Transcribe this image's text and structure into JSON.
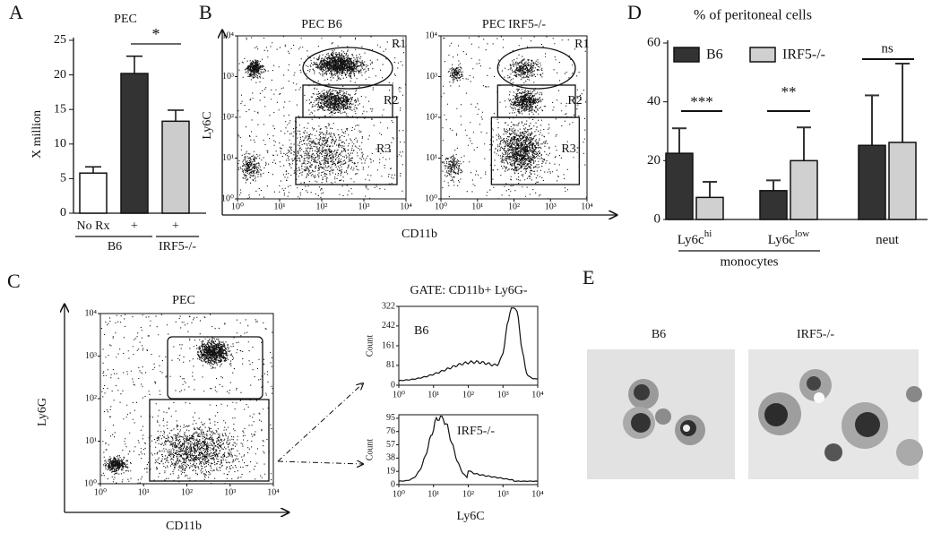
{
  "chart_data": [
    {
      "type": "bar",
      "label": "A",
      "title": "PEC",
      "ylabel": "X million",
      "categories": [
        "No Rx",
        "+",
        "+"
      ],
      "group_labels": [
        "B6",
        "IRF5-/-"
      ],
      "values": [
        5.8,
        20.2,
        13.3
      ],
      "errors": [
        0.9,
        2.5,
        1.6
      ],
      "colors": [
        "#ffffff",
        "#333333",
        "#cccccc"
      ],
      "ylim": [
        0,
        25
      ],
      "yticks": [
        0,
        5,
        10,
        15,
        20,
        25
      ],
      "annotations": [
        "*"
      ]
    },
    {
      "type": "flow",
      "label": "B",
      "titles": [
        "PEC B6",
        "PEC IRF5-/-"
      ],
      "xlabel": "CD11b",
      "ylabel": "Ly6C",
      "log": true,
      "xlim": [
        1,
        10000
      ],
      "ylim": [
        1,
        10000
      ],
      "xticks": [
        {
          "value": 1,
          "label": "10⁰"
        },
        {
          "value": 10,
          "label": "10¹"
        },
        {
          "value": 100,
          "label": "10²"
        },
        {
          "value": 1000,
          "label": "10³"
        },
        {
          "value": 10000,
          "label": "10⁴"
        }
      ],
      "yticks": [
        {
          "value": 1,
          "label": "10⁰"
        },
        {
          "value": 10,
          "label": "10¹"
        },
        {
          "value": 100,
          "label": "10²"
        },
        {
          "value": 1000,
          "label": "10³"
        },
        {
          "value": 10000,
          "label": "10⁴"
        }
      ],
      "gates": [
        "R1",
        "R2",
        "R3"
      ]
    },
    {
      "type": "flow_histogram",
      "label": "C",
      "title": "PEC",
      "xlabel": "CD11b",
      "ylabel": "Ly6G",
      "log": true,
      "xlim": [
        1,
        10000
      ],
      "ylim": [
        1,
        10000
      ],
      "xticks": [
        {
          "value": 1,
          "label": "10⁰"
        },
        {
          "value": 10,
          "label": "10¹"
        },
        {
          "value": 100,
          "label": "10²"
        },
        {
          "value": 1000,
          "label": "10³"
        },
        {
          "value": 10000,
          "label": "10⁴"
        }
      ],
      "yticks": [
        {
          "value": 1,
          "label": "10⁰"
        },
        {
          "value": 10,
          "label": "10¹"
        },
        {
          "value": 100,
          "label": "10²"
        },
        {
          "value": 1000,
          "label": "10³"
        },
        {
          "value": 10000,
          "label": "10⁴"
        }
      ],
      "gate_title": "GATE: CD11b+ Ly6G-",
      "histograms": [
        {
          "name": "B6",
          "ylabel": "Count",
          "ylim": [
            0,
            322
          ],
          "yticks": [
            0,
            81,
            161,
            242,
            322
          ]
        },
        {
          "name": "IRF5-/-",
          "ylabel": "Count",
          "ylim": [
            0,
            100
          ],
          "yticks": [
            0,
            19,
            38,
            57,
            76,
            95
          ]
        }
      ],
      "hist_xlabel": "Ly6C"
    },
    {
      "type": "grouped_bar",
      "label": "D",
      "title": "% of peritoneal cells",
      "categories": [
        "Ly6c",
        "Ly6c",
        "neut"
      ],
      "category_superscripts": [
        "hi",
        "low",
        null
      ],
      "group_label": "monocytes",
      "series": [
        {
          "name": "B6",
          "color": "#333333",
          "values": [
            22.5,
            9.8,
            25.2
          ],
          "errors": [
            8.5,
            3.5,
            17
          ]
        },
        {
          "name": "IRF5-/-",
          "color": "#d0d0d0",
          "values": [
            7.5,
            20,
            26.2
          ],
          "errors": [
            5.3,
            11.3,
            26.8
          ]
        }
      ],
      "ylim": [
        0,
        60
      ],
      "yticks": [
        0,
        20,
        40,
        60
      ],
      "annotations": [
        "***",
        "**",
        "ns"
      ]
    }
  ],
  "panel_e": {
    "label": "E",
    "captions": [
      "B6",
      "IRF5-/-"
    ]
  }
}
